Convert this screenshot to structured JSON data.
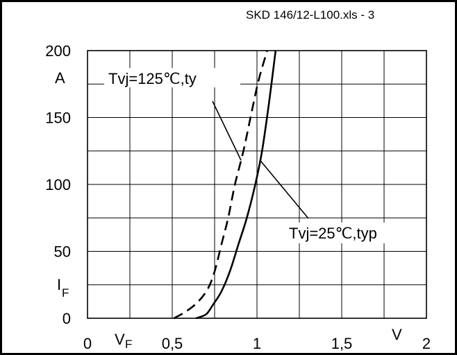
{
  "chart_data": {
    "type": "line",
    "file_label": "SKD 146/12-L100.xls - 3",
    "xlim": [
      0,
      2
    ],
    "ylim": [
      0,
      200
    ],
    "x_ticks": [
      {
        "value": 0,
        "label": "0"
      },
      {
        "value": 0.5,
        "label": "0,5"
      },
      {
        "value": 1,
        "label": "1"
      },
      {
        "value": 1.5,
        "label": "1,5"
      },
      {
        "value": 2,
        "label": "2"
      }
    ],
    "y_ticks": [
      {
        "value": 0,
        "label": "0"
      },
      {
        "value": 50,
        "label": "50"
      },
      {
        "value": 100,
        "label": "100"
      },
      {
        "value": 150,
        "label": "150"
      },
      {
        "value": 200,
        "label": "200"
      }
    ],
    "grid": true,
    "x_minor_step": 0.25,
    "y_minor_step": 25,
    "xlabel_symbol": "V",
    "xlabel_sub": "F",
    "xunit": "V",
    "ylabel_symbol": "I",
    "ylabel_sub": "F",
    "yunit": "A",
    "series": [
      {
        "name": "Tvj=125℃,ty",
        "style": "dashed",
        "color": "#000000",
        "x": [
          0.51,
          0.58,
          0.65,
          0.71,
          0.75,
          0.79,
          0.83,
          0.87,
          0.92,
          0.97,
          1.01,
          1.06
        ],
        "y": [
          0,
          5,
          12,
          22,
          35,
          55,
          75,
          100,
          125,
          155,
          178,
          200
        ]
      },
      {
        "name": "Tvj=25℃,typ",
        "style": "solid",
        "color": "#000000",
        "x": [
          0.64,
          0.7,
          0.74,
          0.79,
          0.84,
          0.89,
          0.94,
          0.99,
          1.03,
          1.07,
          1.11
        ],
        "y": [
          0,
          3,
          10,
          20,
          35,
          55,
          75,
          100,
          125,
          160,
          200
        ]
      }
    ],
    "annotations": [
      {
        "text": "Tvj=125℃,ty",
        "target_series": 0,
        "target_y": 118
      },
      {
        "text": "Tvj=25℃,typ",
        "target_series": 1,
        "target_y": 118
      }
    ]
  }
}
